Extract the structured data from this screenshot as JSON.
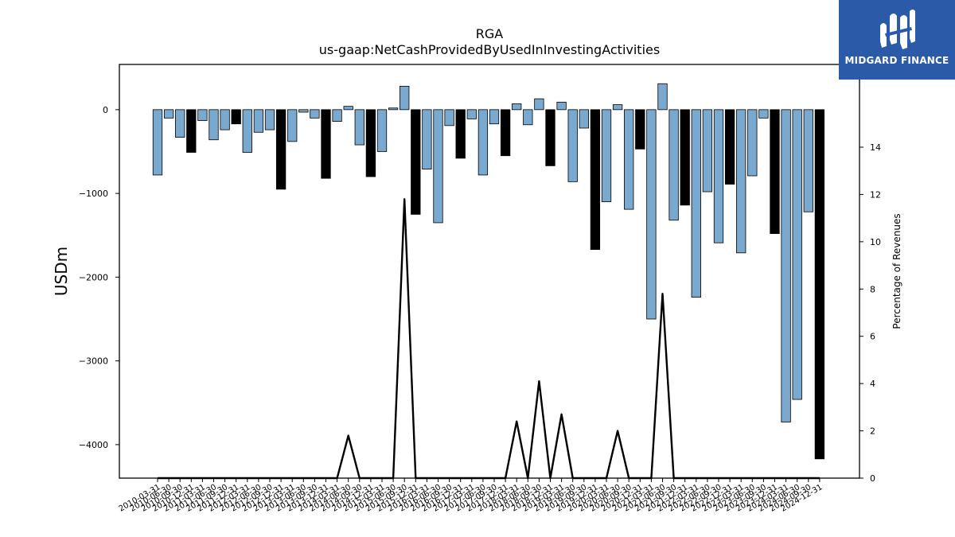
{
  "brand": {
    "name": "MIDGARD FINANCE",
    "icon": "midgard-logo-icon",
    "background": "#2b5aa8"
  },
  "chart_data": {
    "type": "bar",
    "title": "RGA",
    "subtitle": "us-gaap:NetCashProvidedByUsedInInvestingActivities",
    "ylabel": "USDm",
    "y2label": "Percentage of Revenues",
    "ylim": [
      -4400,
      540
    ],
    "y2lim": [
      0,
      17.5
    ],
    "yticks": [
      0,
      -1000,
      -2000,
      -3000,
      -4000
    ],
    "yticklabels": [
      "0",
      "−1000",
      "−2000",
      "−3000",
      "−4000"
    ],
    "y2ticks": [
      0,
      2,
      4,
      6,
      8,
      10,
      12,
      14
    ],
    "y2ticklabels": [
      "0",
      "2",
      "4",
      "6",
      "8",
      "10",
      "12",
      "14"
    ],
    "grid": false,
    "colors": {
      "quarter": "#7aa9d0",
      "annual": "#000000",
      "edge": "#000000",
      "line": "#000000"
    },
    "categories": [
      "2010-03-31",
      "2010-06-30",
      "2010-09-30",
      "2010-12-31",
      "2011-03-31",
      "2011-06-30",
      "2011-09-30",
      "2011-12-31",
      "2012-03-31",
      "2012-06-30",
      "2012-09-30",
      "2012-12-31",
      "2013-03-31",
      "2013-06-30",
      "2013-09-30",
      "2013-12-31",
      "2014-03-31",
      "2014-06-30",
      "2014-09-30",
      "2014-12-31",
      "2015-03-31",
      "2015-06-30",
      "2015-09-30",
      "2015-12-31",
      "2016-03-31",
      "2016-06-30",
      "2016-09-30",
      "2016-12-31",
      "2017-03-31",
      "2017-06-30",
      "2017-09-30",
      "2017-12-31",
      "2018-03-31",
      "2018-06-30",
      "2018-09-30",
      "2018-12-31",
      "2019-03-31",
      "2019-06-30",
      "2019-09-30",
      "2019-12-31",
      "2020-03-31",
      "2020-06-30",
      "2020-09-30",
      "2020-12-31",
      "2021-03-31",
      "2021-06-30",
      "2021-09-30",
      "2021-12-31",
      "2022-03-31",
      "2022-06-30",
      "2022-09-30",
      "2022-12-31",
      "2023-03-31",
      "2023-06-30",
      "2023-09-30",
      "2023-12-31",
      "2024-03-31",
      "2024-06-30",
      "2024-09-30",
      "2024-12-31"
    ],
    "values": [
      -780,
      -100,
      -330,
      -510,
      -130,
      -360,
      -240,
      -170,
      -510,
      -270,
      -240,
      -950,
      -380,
      -30,
      -100,
      -820,
      -140,
      40,
      -420,
      -800,
      -500,
      20,
      280,
      -1250,
      -710,
      -1350,
      -190,
      -580,
      -110,
      -780,
      -170,
      -550,
      70,
      -180,
      130,
      -670,
      90,
      -860,
      -220,
      -1670,
      -1100,
      60,
      -1190,
      -470,
      -2500,
      310,
      -1320,
      -1140,
      -2240,
      -980,
      -1590,
      -890,
      -1710,
      -790,
      -100,
      -1480,
      -3730,
      -3460,
      -1220,
      -4170
    ],
    "is_annual": [
      false,
      false,
      false,
      true,
      false,
      false,
      false,
      true,
      false,
      false,
      false,
      true,
      false,
      false,
      false,
      true,
      false,
      false,
      false,
      true,
      false,
      false,
      false,
      true,
      false,
      false,
      false,
      true,
      false,
      false,
      false,
      true,
      false,
      false,
      false,
      true,
      false,
      false,
      false,
      true,
      false,
      false,
      false,
      true,
      false,
      false,
      false,
      true,
      false,
      false,
      false,
      true,
      false,
      false,
      false,
      true,
      false,
      false,
      false,
      true
    ],
    "pct_revenues": [
      0,
      0,
      0,
      0,
      0,
      0,
      0,
      0,
      0,
      0,
      0,
      0,
      0,
      0,
      0,
      0,
      0,
      1.8,
      0,
      0,
      0,
      0,
      11.8,
      0,
      0,
      0,
      0,
      0,
      0,
      0,
      0,
      0,
      2.4,
      0,
      4.1,
      0,
      2.7,
      0,
      0,
      0,
      0,
      2.0,
      0,
      0,
      0,
      7.8,
      0,
      0,
      0,
      0,
      0,
      0,
      0,
      0,
      0,
      0,
      0,
      0,
      0,
      0
    ]
  }
}
